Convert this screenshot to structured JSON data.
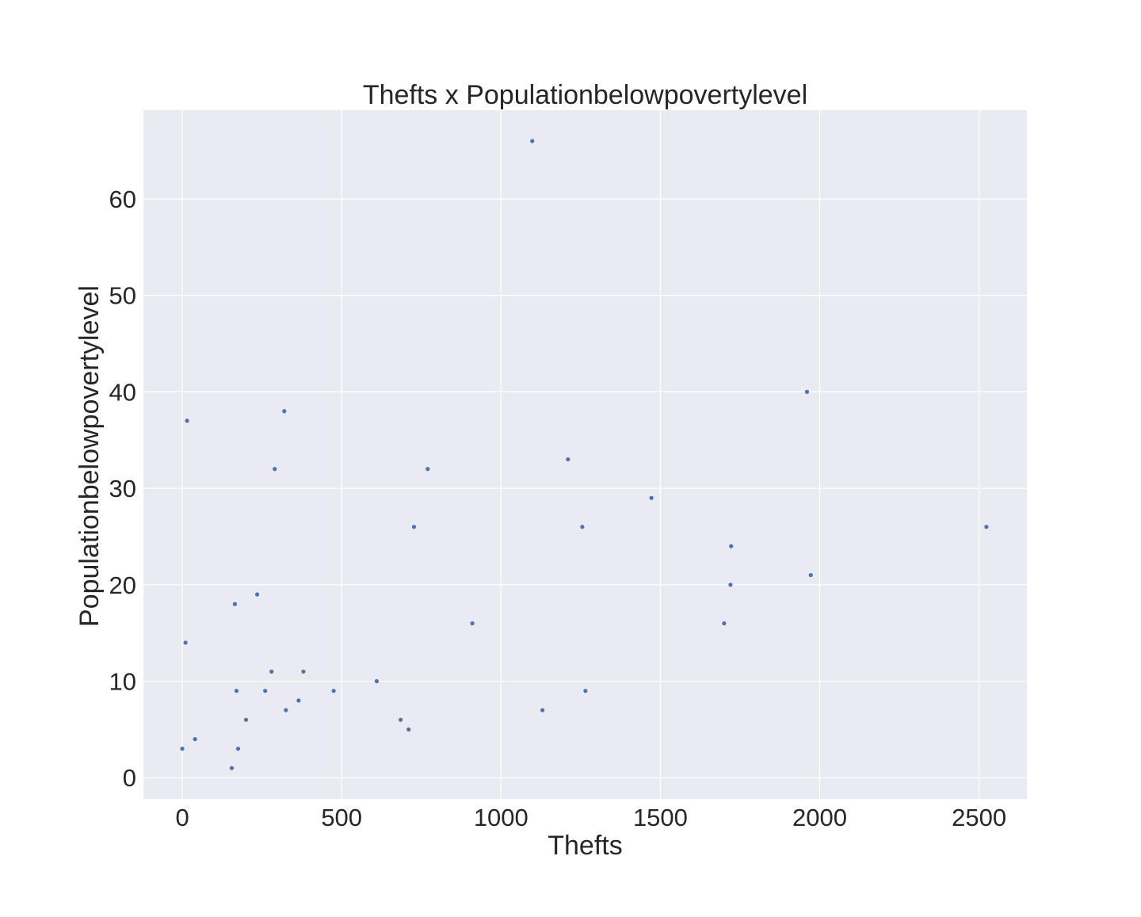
{
  "chart_data": {
    "type": "scatter",
    "title": "Thefts x Populationbelowpovertylevel",
    "xlabel": "Thefts",
    "ylabel": "Populationbelowpovertylevel",
    "xlim": [
      -122,
      2650
    ],
    "ylim": [
      -2.2,
      69.2
    ],
    "xticks": [
      0,
      500,
      1000,
      1500,
      2000,
      2500
    ],
    "yticks": [
      0,
      10,
      20,
      30,
      40,
      50,
      60
    ],
    "grid": true,
    "style": {
      "background": "#eaeaf2",
      "grid_color": "#ffffff",
      "point_color": "#4c72b0",
      "text_color": "#262626"
    },
    "series": [
      {
        "points": [
          [
            0,
            3
          ],
          [
            10,
            14
          ],
          [
            15,
            37
          ],
          [
            40,
            4
          ],
          [
            155,
            1
          ],
          [
            165,
            18
          ],
          [
            170,
            9
          ],
          [
            175,
            3
          ],
          [
            200,
            6
          ],
          [
            235,
            19
          ],
          [
            260,
            9
          ],
          [
            280,
            11
          ],
          [
            290,
            32
          ],
          [
            320,
            38
          ],
          [
            325,
            7
          ],
          [
            365,
            8
          ],
          [
            380,
            11
          ],
          [
            475,
            9
          ],
          [
            610,
            10
          ],
          [
            685,
            6
          ],
          [
            710,
            5
          ],
          [
            727,
            26
          ],
          [
            770,
            32
          ],
          [
            910,
            16
          ],
          [
            1098,
            66
          ],
          [
            1130,
            7
          ],
          [
            1210,
            33
          ],
          [
            1255,
            26
          ],
          [
            1265,
            9
          ],
          [
            1472,
            29
          ],
          [
            1700,
            16
          ],
          [
            1720,
            20
          ],
          [
            1722,
            24
          ],
          [
            1960,
            40
          ],
          [
            1972,
            21
          ],
          [
            2523,
            26
          ]
        ]
      }
    ]
  }
}
